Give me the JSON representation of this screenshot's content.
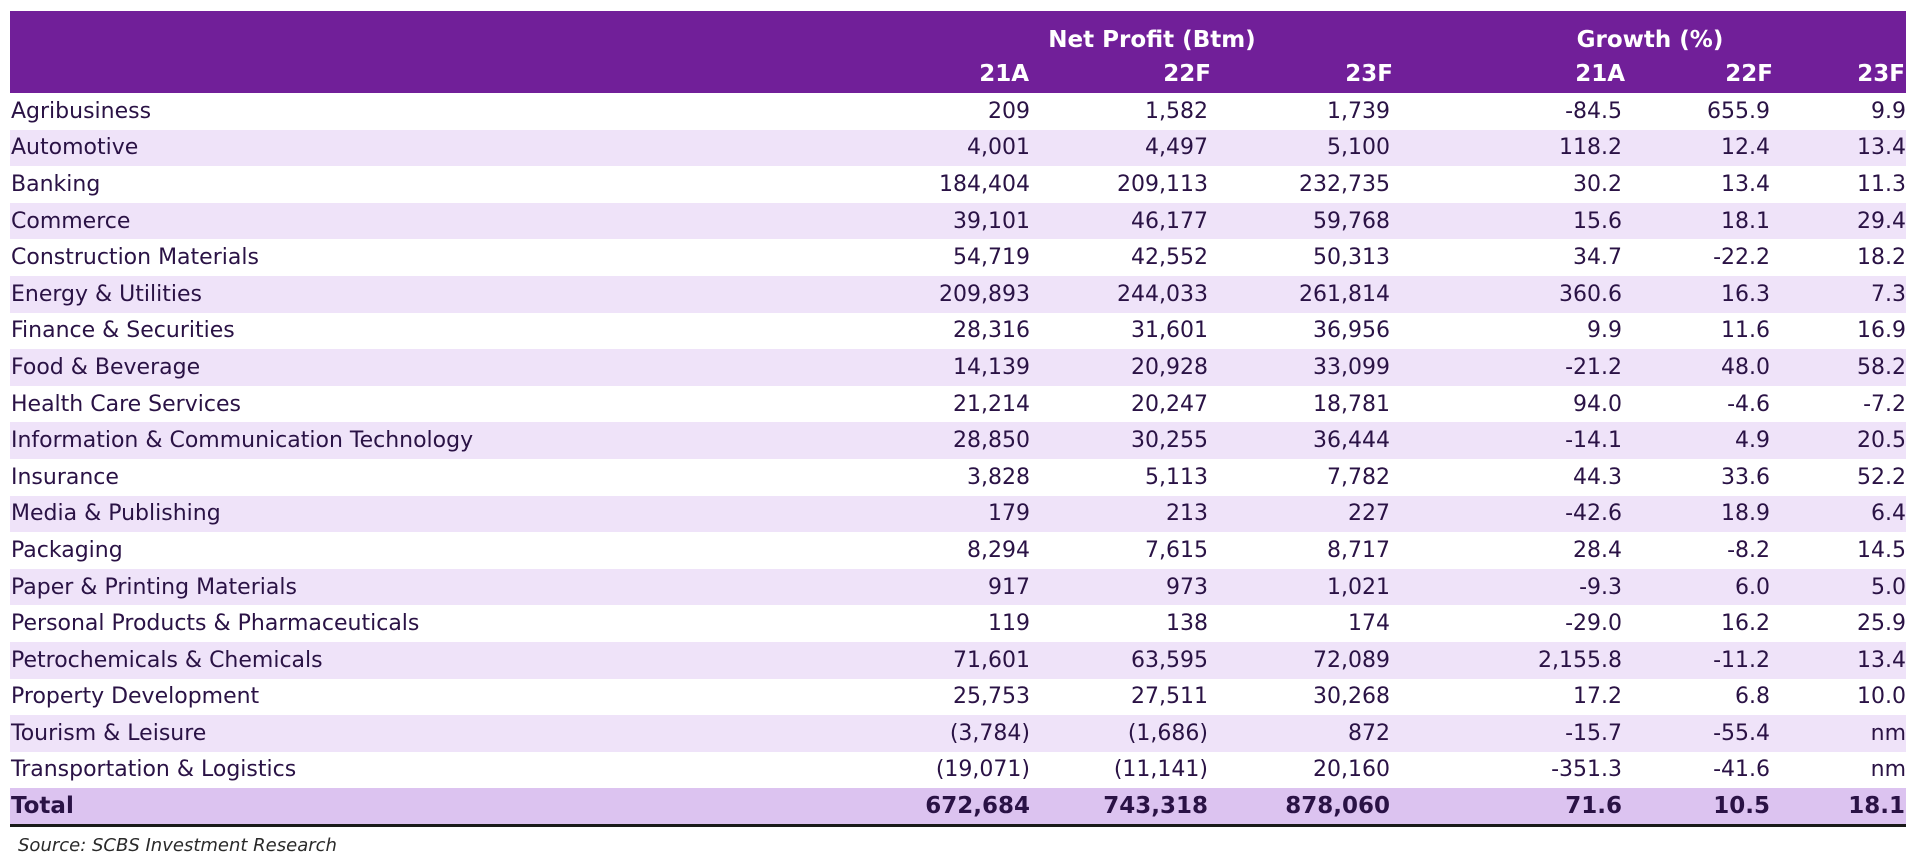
{
  "header": {
    "net_profit_group": "Net Profit (Btm)",
    "growth_group": "Growth (%)",
    "years": [
      "21A",
      "22F",
      "23F",
      "21A",
      "22F",
      "23F"
    ]
  },
  "rows": [
    {
      "sector": "Agribusiness",
      "np_21a": "209",
      "np_22f": "1,582",
      "np_23f": "1,739",
      "g_21a": "-84.5",
      "g_22f": "655.9",
      "g_23f": "9.9"
    },
    {
      "sector": "Automotive",
      "np_21a": "4,001",
      "np_22f": "4,497",
      "np_23f": "5,100",
      "g_21a": "118.2",
      "g_22f": "12.4",
      "g_23f": "13.4"
    },
    {
      "sector": "Banking",
      "np_21a": "184,404",
      "np_22f": "209,113",
      "np_23f": "232,735",
      "g_21a": "30.2",
      "g_22f": "13.4",
      "g_23f": "11.3"
    },
    {
      "sector": "Commerce",
      "np_21a": "39,101",
      "np_22f": "46,177",
      "np_23f": "59,768",
      "g_21a": "15.6",
      "g_22f": "18.1",
      "g_23f": "29.4"
    },
    {
      "sector": "Construction Materials",
      "np_21a": "54,719",
      "np_22f": "42,552",
      "np_23f": "50,313",
      "g_21a": "34.7",
      "g_22f": "-22.2",
      "g_23f": "18.2"
    },
    {
      "sector": "Energy & Utilities",
      "np_21a": "209,893",
      "np_22f": "244,033",
      "np_23f": "261,814",
      "g_21a": "360.6",
      "g_22f": "16.3",
      "g_23f": "7.3"
    },
    {
      "sector": "Finance & Securities",
      "np_21a": "28,316",
      "np_22f": "31,601",
      "np_23f": "36,956",
      "g_21a": "9.9",
      "g_22f": "11.6",
      "g_23f": "16.9"
    },
    {
      "sector": "Food & Beverage",
      "np_21a": "14,139",
      "np_22f": "20,928",
      "np_23f": "33,099",
      "g_21a": "-21.2",
      "g_22f": "48.0",
      "g_23f": "58.2"
    },
    {
      "sector": "Health Care Services",
      "np_21a": "21,214",
      "np_22f": "20,247",
      "np_23f": "18,781",
      "g_21a": "94.0",
      "g_22f": "-4.6",
      "g_23f": "-7.2"
    },
    {
      "sector": "Information & Communication Technology",
      "np_21a": "28,850",
      "np_22f": "30,255",
      "np_23f": "36,444",
      "g_21a": "-14.1",
      "g_22f": "4.9",
      "g_23f": "20.5"
    },
    {
      "sector": "Insurance",
      "np_21a": "3,828",
      "np_22f": "5,113",
      "np_23f": "7,782",
      "g_21a": "44.3",
      "g_22f": "33.6",
      "g_23f": "52.2"
    },
    {
      "sector": "Media & Publishing",
      "np_21a": "179",
      "np_22f": "213",
      "np_23f": "227",
      "g_21a": "-42.6",
      "g_22f": "18.9",
      "g_23f": "6.4"
    },
    {
      "sector": "Packaging",
      "np_21a": "8,294",
      "np_22f": "7,615",
      "np_23f": "8,717",
      "g_21a": "28.4",
      "g_22f": "-8.2",
      "g_23f": "14.5"
    },
    {
      "sector": "Paper & Printing Materials",
      "np_21a": "917",
      "np_22f": "973",
      "np_23f": "1,021",
      "g_21a": "-9.3",
      "g_22f": "6.0",
      "g_23f": "5.0"
    },
    {
      "sector": "Personal Products & Pharmaceuticals",
      "np_21a": "119",
      "np_22f": "138",
      "np_23f": "174",
      "g_21a": "-29.0",
      "g_22f": "16.2",
      "g_23f": "25.9"
    },
    {
      "sector": "Petrochemicals & Chemicals",
      "np_21a": "71,601",
      "np_22f": "63,595",
      "np_23f": "72,089",
      "g_21a": "2,155.8",
      "g_22f": "-11.2",
      "g_23f": "13.4"
    },
    {
      "sector": "Property Development",
      "np_21a": "25,753",
      "np_22f": "27,511",
      "np_23f": "30,268",
      "g_21a": "17.2",
      "g_22f": "6.8",
      "g_23f": "10.0"
    },
    {
      "sector": "Tourism & Leisure",
      "np_21a": "(3,784)",
      "np_22f": "(1,686)",
      "np_23f": "872",
      "g_21a": "-15.7",
      "g_22f": "-55.4",
      "g_23f": "nm"
    },
    {
      "sector": "Transportation & Logistics",
      "np_21a": "(19,071)",
      "np_22f": "(11,141)",
      "np_23f": "20,160",
      "g_21a": "-351.3",
      "g_22f": "-41.6",
      "g_23f": "nm"
    }
  ],
  "total": {
    "sector": "Total",
    "np_21a": "672,684",
    "np_22f": "743,318",
    "np_23f": "878,060",
    "g_21a": "71.6",
    "g_22f": "10.5",
    "g_23f": "18.1"
  },
  "source": "Source: SCBS Investment Research",
  "colors": {
    "header_bg": "#711f99",
    "stripe_bg": "#efe3f9",
    "total_bg": "#dcc3f0",
    "text": "#2a1245"
  }
}
